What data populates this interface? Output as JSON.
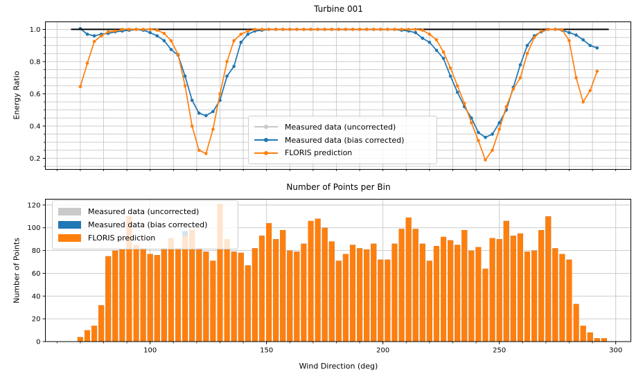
{
  "colors": {
    "uncorrected": "#c9c9c9",
    "bias_corrected": "#1f77b4",
    "floris": "#ff7f0e",
    "reference_line": "#000000",
    "grid": "#c6c6c6",
    "spine": "#000000",
    "background": "#ffffff"
  },
  "legend": {
    "labels": [
      "Measured data (uncorrected)",
      "Measured data (bias corrected)",
      "FLORIS prediction"
    ]
  },
  "chart_data": [
    {
      "type": "line",
      "title": "Turbine 001",
      "xlabel": "",
      "ylabel": "Energy Ratio",
      "xlim": [
        55,
        306.5
      ],
      "ylim": [
        0.131,
        1.047
      ],
      "yticks": [
        0.2,
        0.4,
        0.6,
        0.8,
        1.0
      ],
      "yticklabels": [
        "0.2",
        "0.4",
        "0.6",
        "0.8",
        "1.0"
      ],
      "yticks_minor_step": 0.05,
      "grid_y": [
        0.15,
        0.2,
        0.25,
        0.3,
        0.35,
        0.4,
        0.45,
        0.5,
        0.55,
        0.6,
        0.65,
        0.7,
        0.75,
        0.8,
        0.85,
        0.9,
        0.95,
        1.0
      ],
      "grid_x": [
        60,
        70,
        80,
        90,
        100,
        110,
        120,
        130,
        140,
        150,
        160,
        170,
        180,
        190,
        200,
        210,
        220,
        230,
        240,
        250,
        260,
        270,
        280,
        290,
        300
      ],
      "xticks_minor": [
        60,
        70,
        80,
        90,
        100,
        110,
        120,
        130,
        140,
        150,
        160,
        170,
        180,
        190,
        200,
        210,
        220,
        230,
        240,
        250,
        260,
        270,
        280,
        290,
        300
      ],
      "legend_position": "center",
      "grid": "on",
      "reference_line": {
        "y": 1.0,
        "x_start": 66,
        "x_end": 297
      },
      "x": [
        70,
        73,
        76,
        79,
        82,
        85,
        88,
        91,
        94,
        97,
        100,
        103,
        106,
        109,
        112,
        115,
        118,
        121,
        124,
        127,
        130,
        133,
        136,
        139,
        142,
        145,
        148,
        151,
        154,
        157,
        160,
        163,
        166,
        169,
        172,
        175,
        178,
        181,
        184,
        187,
        190,
        193,
        196,
        199,
        202,
        205,
        208,
        211,
        214,
        217,
        220,
        223,
        226,
        229,
        232,
        235,
        238,
        241,
        244,
        247,
        250,
        253,
        256,
        259,
        262,
        265,
        268,
        271,
        274,
        277,
        280,
        283,
        286,
        289,
        292
      ],
      "series": [
        {
          "name": "Measured data (uncorrected)",
          "color_key": "uncorrected",
          "values": [
            1.005,
            0.97,
            0.96,
            0.97,
            0.975,
            0.985,
            0.99,
            0.995,
            1.0,
            0.995,
            0.98,
            0.96,
            0.93,
            0.875,
            0.84,
            0.71,
            0.56,
            0.48,
            0.465,
            0.49,
            0.56,
            0.71,
            0.77,
            0.92,
            0.97,
            0.99,
            0.995,
            1.0,
            1.0,
            1.0,
            1.0,
            1.0,
            1.0,
            1.0,
            1.0,
            1.0,
            1.0,
            1.0,
            1.0,
            1.0,
            1.0,
            1.0,
            1.0,
            1.0,
            1.0,
            1.0,
            0.995,
            0.99,
            0.98,
            0.945,
            0.92,
            0.87,
            0.82,
            0.71,
            0.61,
            0.52,
            0.45,
            0.36,
            0.33,
            0.35,
            0.42,
            0.5,
            0.64,
            0.78,
            0.9,
            0.96,
            0.985,
            1.0,
            1.0,
            0.995,
            0.98,
            0.965,
            0.935,
            0.9,
            0.885
          ]
        },
        {
          "name": "Measured data (bias corrected)",
          "color_key": "bias_corrected",
          "values": [
            1.005,
            0.97,
            0.96,
            0.97,
            0.975,
            0.985,
            0.99,
            0.995,
            1.0,
            0.995,
            0.98,
            0.96,
            0.93,
            0.875,
            0.84,
            0.71,
            0.56,
            0.48,
            0.465,
            0.49,
            0.56,
            0.71,
            0.77,
            0.92,
            0.97,
            0.99,
            0.995,
            1.0,
            1.0,
            1.0,
            1.0,
            1.0,
            1.0,
            1.0,
            1.0,
            1.0,
            1.0,
            1.0,
            1.0,
            1.0,
            1.0,
            1.0,
            1.0,
            1.0,
            1.0,
            1.0,
            0.995,
            0.99,
            0.98,
            0.945,
            0.92,
            0.87,
            0.82,
            0.71,
            0.61,
            0.52,
            0.45,
            0.36,
            0.33,
            0.35,
            0.42,
            0.5,
            0.64,
            0.78,
            0.9,
            0.96,
            0.985,
            1.0,
            1.0,
            0.995,
            0.98,
            0.965,
            0.935,
            0.9,
            0.885
          ]
        },
        {
          "name": "FLORIS prediction",
          "color_key": "floris",
          "values": [
            0.645,
            0.79,
            0.925,
            0.96,
            0.985,
            0.99,
            1.0,
            1.0,
            1.0,
            1.0,
            1.0,
            0.995,
            0.975,
            0.93,
            0.845,
            0.65,
            0.4,
            0.25,
            0.23,
            0.38,
            0.6,
            0.8,
            0.93,
            0.97,
            0.99,
            1.0,
            1.0,
            1.0,
            1.0,
            1.0,
            1.0,
            1.0,
            1.0,
            1.0,
            1.0,
            1.0,
            1.0,
            1.0,
            1.0,
            1.0,
            1.0,
            1.0,
            1.0,
            1.0,
            1.0,
            1.0,
            1.0,
            1.0,
            1.0,
            0.995,
            0.97,
            0.935,
            0.86,
            0.76,
            0.65,
            0.54,
            0.42,
            0.31,
            0.19,
            0.25,
            0.38,
            0.52,
            0.63,
            0.7,
            0.85,
            0.95,
            0.99,
            1.0,
            1.0,
            0.998,
            0.93,
            0.7,
            0.55,
            0.62,
            0.74
          ]
        }
      ]
    },
    {
      "type": "bar",
      "title": "Number of Points per Bin",
      "xlabel": "Wind Direction (deg)",
      "ylabel": "Number of Points",
      "xlim": [
        55,
        306.5
      ],
      "ylim": [
        0,
        125.1
      ],
      "yticks": [
        0,
        20,
        40,
        60,
        80,
        100,
        120
      ],
      "yticklabels": [
        "0",
        "20",
        "40",
        "60",
        "80",
        "100",
        "120"
      ],
      "xticks": [
        100,
        150,
        200,
        250,
        300
      ],
      "xticklabels": [
        "100",
        "150",
        "200",
        "250",
        "300"
      ],
      "xticks_minor": [
        60,
        70,
        80,
        90,
        100,
        110,
        120,
        130,
        140,
        150,
        160,
        170,
        180,
        190,
        200,
        210,
        220,
        230,
        240,
        250,
        260,
        270,
        280,
        290,
        300
      ],
      "grid_x": [
        100,
        150,
        200,
        250,
        300
      ],
      "grid_y": [
        20,
        40,
        60,
        80,
        100,
        120
      ],
      "legend_position": "upper left",
      "grid": "on",
      "bin_width_deg": 2.4,
      "categories": [
        70,
        73,
        76,
        79,
        82,
        85,
        88,
        91,
        94,
        97,
        100,
        103,
        106,
        109,
        112,
        115,
        118,
        121,
        124,
        127,
        130,
        133,
        136,
        139,
        142,
        145,
        148,
        151,
        154,
        157,
        160,
        163,
        166,
        169,
        172,
        175,
        178,
        181,
        184,
        187,
        190,
        193,
        196,
        199,
        202,
        205,
        208,
        211,
        214,
        217,
        220,
        223,
        226,
        229,
        232,
        235,
        238,
        241,
        244,
        247,
        250,
        253,
        256,
        259,
        262,
        265,
        268,
        271,
        274,
        277,
        280,
        283,
        286,
        289,
        292,
        295
      ],
      "series": [
        {
          "name": "Measured data (uncorrected)",
          "color_key": "uncorrected",
          "values": [
            4,
            10,
            14,
            32,
            75,
            80,
            81,
            110,
            85,
            82,
            77,
            76,
            82,
            91,
            82,
            93,
            98,
            82,
            79,
            71,
            121,
            90,
            79,
            78,
            67,
            82,
            93,
            104,
            90,
            98,
            80,
            79,
            86,
            106,
            108,
            100,
            88,
            71,
            77,
            85,
            82,
            81,
            86,
            72,
            72,
            86,
            99,
            109,
            99,
            86,
            71,
            84,
            92,
            89,
            85,
            98,
            80,
            83,
            64,
            91,
            90,
            106,
            93,
            95,
            79,
            80,
            98,
            110,
            82,
            77,
            72,
            33,
            14,
            8,
            3,
            3
          ]
        },
        {
          "name": "Measured data (bias corrected)",
          "color_key": "bias_corrected",
          "values": [
            4,
            10,
            14,
            32,
            75,
            80,
            81,
            110,
            85,
            82,
            77,
            76,
            82,
            91,
            82,
            97,
            98,
            82,
            79,
            71,
            121,
            90,
            79,
            78,
            67,
            82,
            93,
            104,
            90,
            98,
            80,
            79,
            86,
            106,
            108,
            100,
            88,
            71,
            77,
            85,
            82,
            81,
            86,
            72,
            72,
            86,
            99,
            109,
            99,
            86,
            71,
            84,
            92,
            89,
            85,
            98,
            80,
            83,
            64,
            91,
            90,
            106,
            93,
            95,
            79,
            80,
            98,
            110,
            82,
            77,
            72,
            33,
            14,
            8,
            3,
            3
          ]
        },
        {
          "name": "FLORIS prediction",
          "color_key": "floris",
          "values": [
            4,
            10,
            14,
            32,
            75,
            80,
            81,
            110,
            85,
            82,
            77,
            76,
            82,
            91,
            82,
            93,
            98,
            82,
            79,
            71,
            121,
            90,
            79,
            78,
            67,
            82,
            93,
            104,
            90,
            98,
            80,
            79,
            86,
            106,
            108,
            100,
            88,
            71,
            77,
            85,
            82,
            81,
            86,
            72,
            72,
            86,
            99,
            109,
            99,
            86,
            71,
            84,
            92,
            89,
            85,
            98,
            80,
            83,
            64,
            91,
            90,
            106,
            93,
            95,
            79,
            80,
            98,
            110,
            82,
            77,
            72,
            33,
            14,
            8,
            3,
            3
          ]
        }
      ]
    }
  ]
}
